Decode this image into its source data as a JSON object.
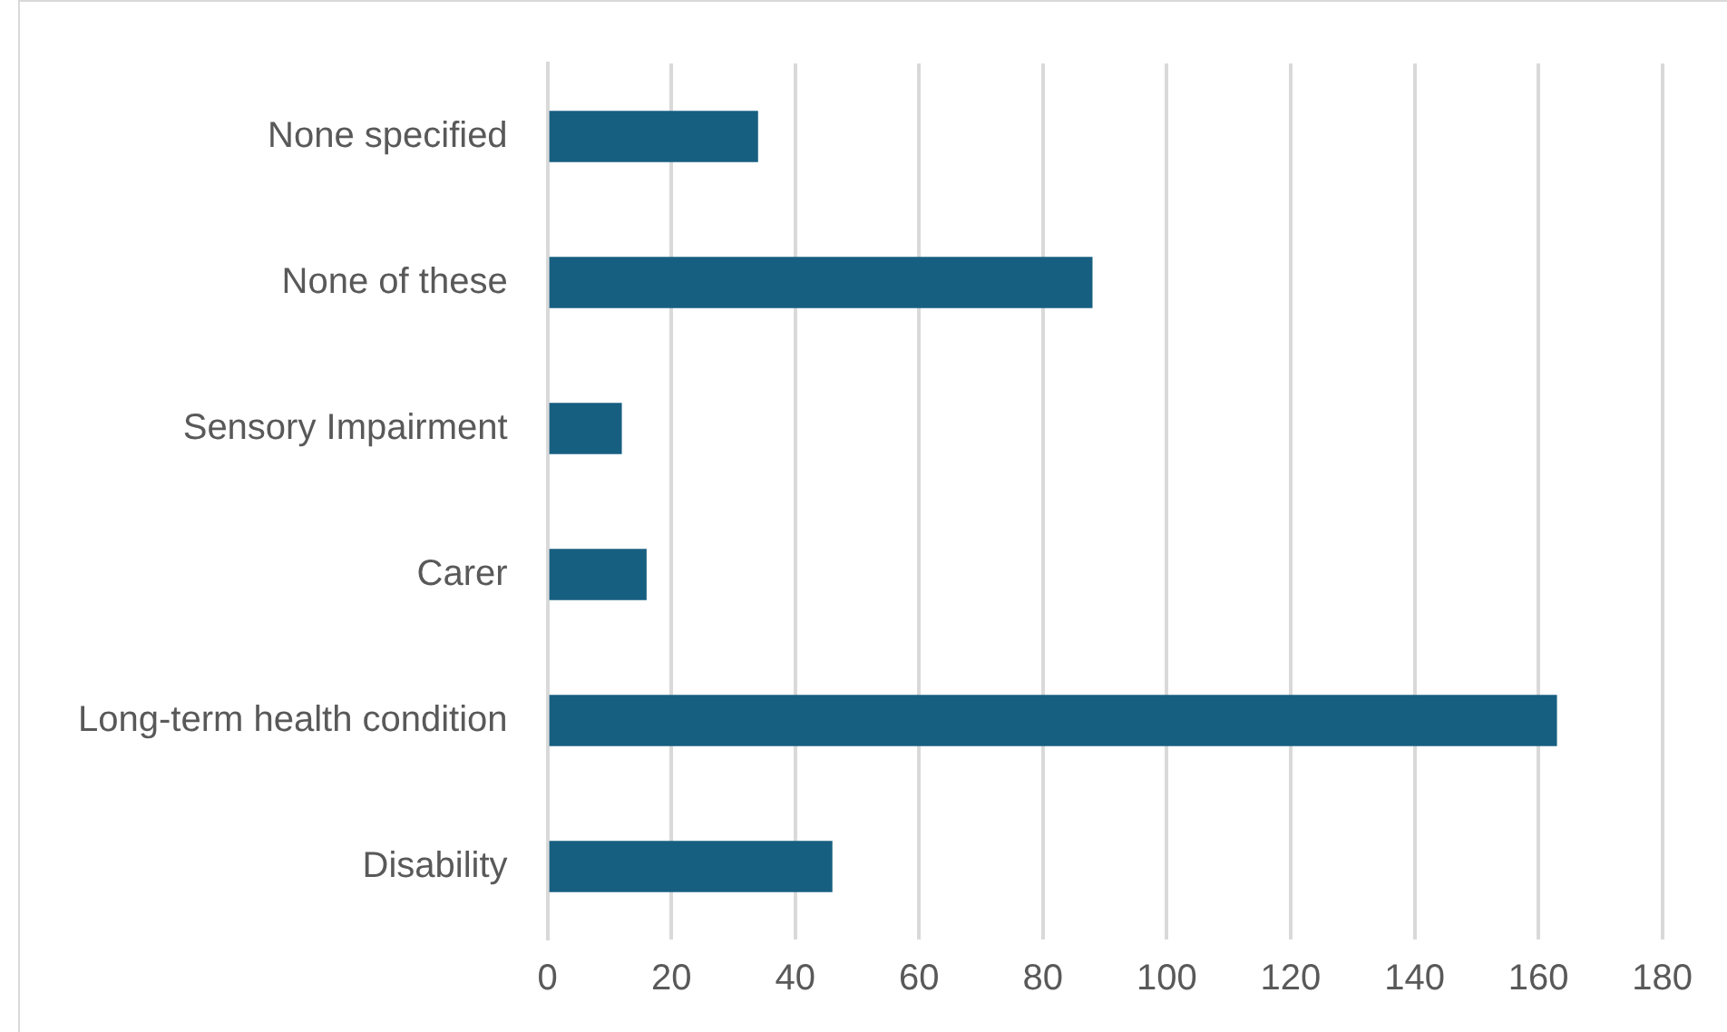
{
  "chart_data": {
    "type": "bar",
    "orientation": "horizontal",
    "categories": [
      "None specified",
      "None of these",
      "Sensory Impairment",
      "Carer",
      "Long-term health condition",
      "Disability"
    ],
    "values": [
      34,
      88,
      12,
      16,
      163,
      46
    ],
    "color": "#175f81",
    "xlim": [
      0,
      180
    ],
    "xticks": [
      0,
      20,
      40,
      60,
      80,
      100,
      120,
      140,
      160,
      180
    ],
    "grid": "x"
  }
}
